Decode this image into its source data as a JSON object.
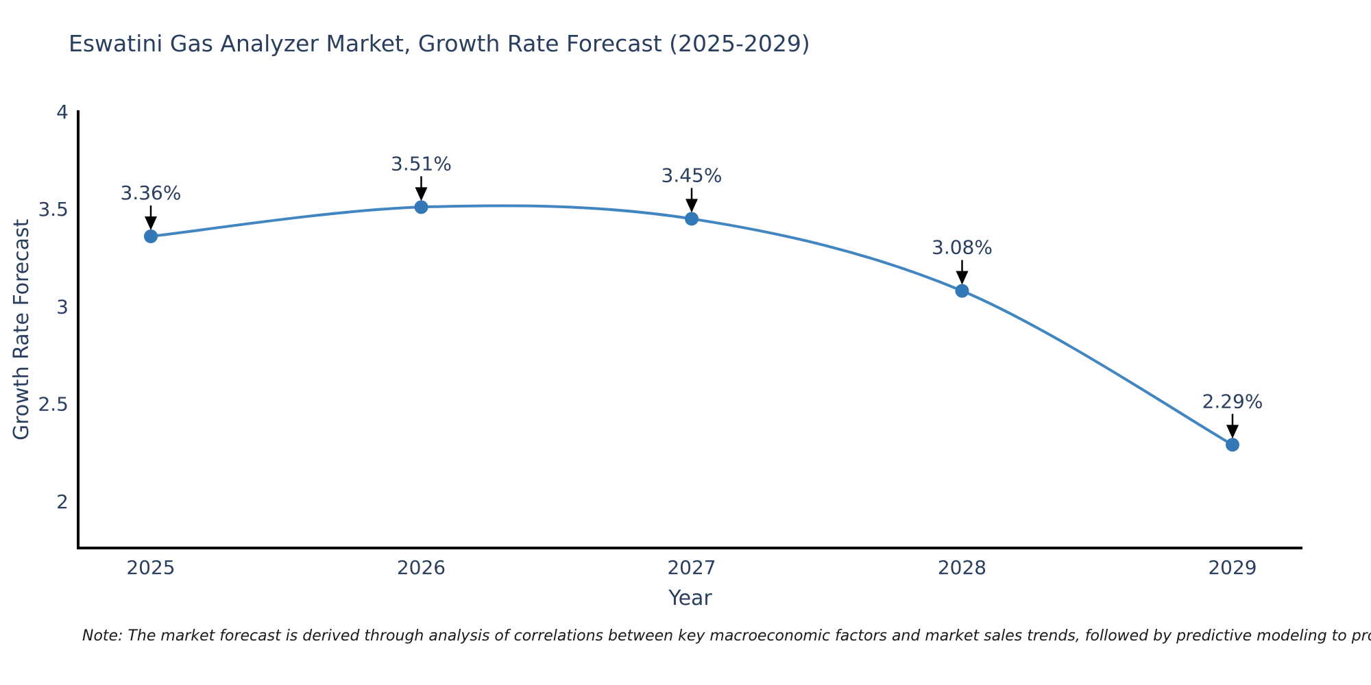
{
  "page": {
    "note": "Note: The market forecast is derived through analysis of correlations between key macroeconomic factors and market sales trends, followed by predictive modeling to project future sales"
  },
  "chart_data": {
    "type": "line",
    "title": "Eswatini Gas Analyzer Market, Growth Rate Forecast (2025-2029)",
    "xlabel": "Year",
    "ylabel": "Growth Rate Forecast",
    "categories": [
      2025,
      2026,
      2027,
      2028,
      2029
    ],
    "values": [
      3.36,
      3.51,
      3.45,
      3.08,
      2.29
    ],
    "point_labels": [
      "3.36%",
      "3.51%",
      "3.45%",
      "3.08%",
      "2.29%"
    ],
    "x_tick_labels": [
      "2025",
      "2026",
      "2027",
      "2028",
      "2029"
    ],
    "y_tick_values": [
      4,
      3.5,
      3,
      2.5,
      2
    ],
    "y_tick_labels": [
      "4",
      "3.5",
      "3",
      "2.5",
      "2"
    ],
    "ylim": [
      1.76,
      4.0
    ],
    "line_shape": "spline",
    "grid": false,
    "legend": false,
    "annotations_have_arrows": true,
    "colors": {
      "line": "#4186c0",
      "marker": "#3379b8",
      "axis": "#000000",
      "tick_text": "#2a3f5f",
      "annotation_text": "#2a3f5f",
      "arrow": "#000000",
      "note_text": "#1a1a1a",
      "background": "#ffffff"
    }
  }
}
